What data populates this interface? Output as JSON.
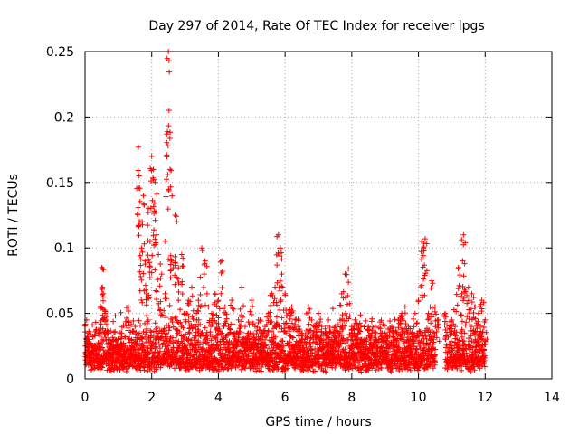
{
  "chart_data": {
    "type": "scatter",
    "title": "Day 297 of 2014, Rate Of TEC Index for receiver lpgs",
    "xlabel": "GPS time / hours",
    "ylabel": "ROTI / TECUs",
    "xlim": [
      0,
      14
    ],
    "ylim": [
      0,
      0.25
    ],
    "xticks": [
      0,
      2,
      4,
      6,
      8,
      10,
      12,
      14
    ],
    "yticks": [
      0,
      0.05,
      0.1,
      0.15,
      0.2,
      0.25
    ],
    "xtick_labels": [
      "0",
      "2",
      "4",
      "6",
      "8",
      "10",
      "12",
      "14"
    ],
    "ytick_labels": [
      "0",
      "0.05",
      "0.1",
      "0.15",
      "0.2",
      "0.25"
    ],
    "grid": true,
    "marker": "+",
    "color": "#ff0000",
    "series": [
      {
        "name": "ROTI",
        "x": [
          0.05,
          0.1,
          0.2,
          0.3,
          0.4,
          0.5,
          0.52,
          0.55,
          0.6,
          0.7,
          0.8,
          0.9,
          1.0,
          1.1,
          1.2,
          1.3,
          1.4,
          1.5,
          1.6,
          1.62,
          1.65,
          1.7,
          1.75,
          1.8,
          1.85,
          1.9,
          1.95,
          2.0,
          2.05,
          2.1,
          2.15,
          2.2,
          2.3,
          2.4,
          2.45,
          2.5,
          2.52,
          2.55,
          2.6,
          2.7,
          2.75,
          2.8,
          2.9,
          3.0,
          3.1,
          3.2,
          3.3,
          3.4,
          3.5,
          3.6,
          3.7,
          3.8,
          3.9,
          4.0,
          4.1,
          4.2,
          4.3,
          4.4,
          4.5,
          4.6,
          4.7,
          4.8,
          4.9,
          5.0,
          5.1,
          5.2,
          5.3,
          5.4,
          5.5,
          5.6,
          5.7,
          5.8,
          5.85,
          5.9,
          6.0,
          6.1,
          6.2,
          6.3,
          6.4,
          6.5,
          6.6,
          6.7,
          6.8,
          6.9,
          7.0,
          7.1,
          7.2,
          7.3,
          7.4,
          7.5,
          7.6,
          7.7,
          7.8,
          7.9,
          8.0,
          8.1,
          8.2,
          8.3,
          8.4,
          8.5,
          8.6,
          8.7,
          8.8,
          8.9,
          9.0,
          9.1,
          9.2,
          9.3,
          9.4,
          9.5,
          9.6,
          9.7,
          9.8,
          9.9,
          10.0,
          10.1,
          10.15,
          10.2,
          10.3,
          10.4,
          10.5,
          10.6,
          10.8,
          11.0,
          11.1,
          11.2,
          11.3,
          11.35,
          11.4,
          11.5,
          11.6,
          11.7,
          11.8,
          11.9,
          12.0
        ],
        "y": [
          0.045,
          0.03,
          0.025,
          0.02,
          0.035,
          0.085,
          0.07,
          0.065,
          0.05,
          0.03,
          0.025,
          0.03,
          0.03,
          0.035,
          0.025,
          0.055,
          0.03,
          0.04,
          0.177,
          0.155,
          0.12,
          0.1,
          0.14,
          0.09,
          0.065,
          0.13,
          0.105,
          0.17,
          0.16,
          0.15,
          0.11,
          0.095,
          0.08,
          0.065,
          0.187,
          0.25,
          0.243,
          0.16,
          0.09,
          0.125,
          0.12,
          0.06,
          0.095,
          0.05,
          0.06,
          0.07,
          0.045,
          0.06,
          0.1,
          0.09,
          0.055,
          0.05,
          0.065,
          0.06,
          0.09,
          0.055,
          0.04,
          0.06,
          0.035,
          0.045,
          0.07,
          0.04,
          0.035,
          0.06,
          0.04,
          0.045,
          0.035,
          0.04,
          0.05,
          0.065,
          0.07,
          0.11,
          0.1,
          0.08,
          0.065,
          0.05,
          0.055,
          0.045,
          0.04,
          0.035,
          0.03,
          0.055,
          0.045,
          0.04,
          0.05,
          0.04,
          0.035,
          0.045,
          0.03,
          0.04,
          0.035,
          0.065,
          0.08,
          0.084,
          0.04,
          0.045,
          0.035,
          0.03,
          0.03,
          0.04,
          0.035,
          0.04,
          0.03,
          0.035,
          0.035,
          0.025,
          0.04,
          0.03,
          0.045,
          0.05,
          0.055,
          0.04,
          0.035,
          0.05,
          0.06,
          0.105,
          0.1,
          0.107,
          0.05,
          0.075,
          0.055,
          0.045,
          0.05,
          0.045,
          0.04,
          0.085,
          0.065,
          0.11,
          0.104,
          0.07,
          0.065,
          0.055,
          0.05,
          0.06,
          0.045
        ]
      }
    ],
    "cloud_baseline": {
      "x_segments": [
        [
          0,
          10.5
        ],
        [
          10.8,
          12.0
        ]
      ],
      "y_range": [
        0.005,
        0.045
      ]
    }
  }
}
